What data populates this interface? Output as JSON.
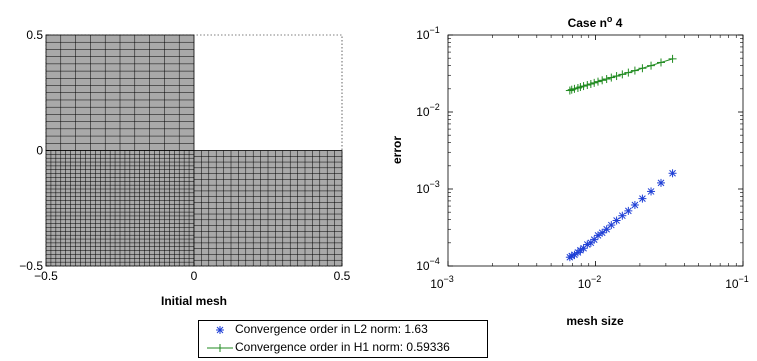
{
  "chart_data": [
    {
      "type": "mesh",
      "xlabel": "Initial mesh",
      "xlim": [
        -0.5,
        0.5
      ],
      "ylim": [
        -0.5,
        0.5
      ],
      "xticks": [
        "−0.5",
        "0",
        "0.5"
      ],
      "yticks": [
        "−0.5",
        "0",
        "0.5"
      ],
      "regions": [
        {
          "name": "upper-left",
          "x": [
            -0.5,
            0
          ],
          "y": [
            0,
            0.5
          ],
          "nx": 10,
          "ny": 16
        },
        {
          "name": "lower-left",
          "x": [
            -0.5,
            0
          ],
          "y": [
            -0.5,
            0
          ],
          "nx": 30,
          "ny": 30
        },
        {
          "name": "lower-right",
          "x": [
            0,
            0.5
          ],
          "y": [
            -0.5,
            0
          ],
          "nx": 20,
          "ny": 20
        }
      ],
      "fill_color": "#a9a9a9"
    },
    {
      "type": "scatter",
      "title": "Case n",
      "title_superscript": "o",
      "title_suffix": " 4",
      "xlabel": "mesh size",
      "ylabel": "error",
      "xscale": "log",
      "yscale": "log",
      "xlim": [
        0.001,
        0.1
      ],
      "ylim": [
        0.0001,
        0.1
      ],
      "xticks": [
        {
          "base": "10",
          "exp": "−3"
        },
        {
          "base": "10",
          "exp": "−2"
        },
        {
          "base": "10",
          "exp": "−1"
        }
      ],
      "yticks": [
        {
          "base": "10",
          "exp": "−4"
        },
        {
          "base": "10",
          "exp": "−3"
        },
        {
          "base": "10",
          "exp": "−2"
        },
        {
          "base": "10",
          "exp": "−1"
        }
      ],
      "series": [
        {
          "name": "Convergence order in L2 norm: 1.63",
          "marker": "*",
          "color": "#1f3fd6",
          "x": [
            0.0333,
            0.0278,
            0.0238,
            0.0208,
            0.0185,
            0.0167,
            0.0152,
            0.0139,
            0.0128,
            0.0119,
            0.0111,
            0.0104,
            0.0098,
            0.0093,
            0.0088,
            0.0083,
            0.0079,
            0.0076,
            0.0072,
            0.0069,
            0.0067
          ],
          "y": [
            0.0016,
            0.0012,
            0.00093,
            0.00075,
            0.00062,
            0.00052,
            0.00045,
            0.00039,
            0.00034,
            0.0003,
            0.00027,
            0.00025,
            0.00022,
            0.0002,
            0.00019,
            0.00017,
            0.00016,
            0.00015,
            0.00014,
            0.000135,
            0.00013
          ]
        },
        {
          "name": "Convergence order in H1 norm: 0.59336",
          "marker": "+",
          "color": "#1f8a1f",
          "x": [
            0.0333,
            0.0278,
            0.0238,
            0.0208,
            0.0185,
            0.0167,
            0.0152,
            0.0139,
            0.0128,
            0.0119,
            0.0111,
            0.0104,
            0.0098,
            0.0093,
            0.0088,
            0.0083,
            0.0079,
            0.0076,
            0.0072,
            0.0069,
            0.0067
          ],
          "y": [
            0.049,
            0.044,
            0.04,
            0.037,
            0.0345,
            0.0325,
            0.0308,
            0.0293,
            0.028,
            0.0268,
            0.0258,
            0.0248,
            0.0239,
            0.0231,
            0.0224,
            0.0217,
            0.0211,
            0.0205,
            0.02,
            0.0195,
            0.019
          ]
        }
      ]
    }
  ]
}
